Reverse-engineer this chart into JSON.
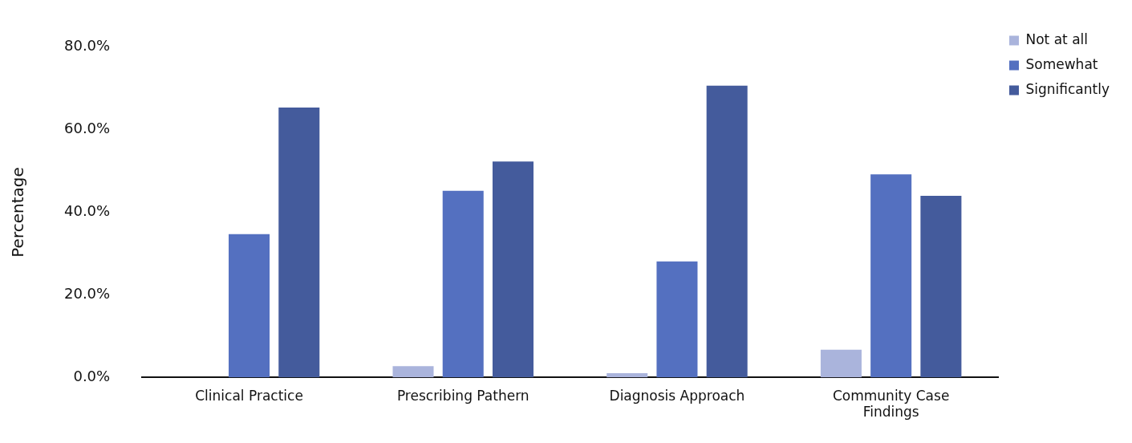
{
  "chart_data": {
    "type": "bar",
    "ylabel": "Percentage",
    "categories": [
      "Clinical Practice",
      "Prescribing Pathern",
      "Diagnosis Approach",
      "Community Case Findings"
    ],
    "series": [
      {
        "name": "Not at all",
        "color": "#aab4dc",
        "values": [
          0,
          2.7,
          1.0,
          6.7
        ]
      },
      {
        "name": "Somewhat",
        "color": "#5470c0",
        "values": [
          34.7,
          45.2,
          28.1,
          49.2
        ]
      },
      {
        "name": "Significantly",
        "color": "#445b9c",
        "values": [
          65.4,
          52.3,
          70.7,
          44.0
        ]
      }
    ],
    "ylim": [
      0,
      80
    ],
    "yticks": [
      {
        "value": 0,
        "label": "0.0%"
      },
      {
        "value": 20,
        "label": "20.0%"
      },
      {
        "value": 40,
        "label": "40.0%"
      },
      {
        "value": 60,
        "label": "60.0%"
      },
      {
        "value": 80,
        "label": "80.0%"
      }
    ],
    "grid": false,
    "legend": "top right"
  }
}
